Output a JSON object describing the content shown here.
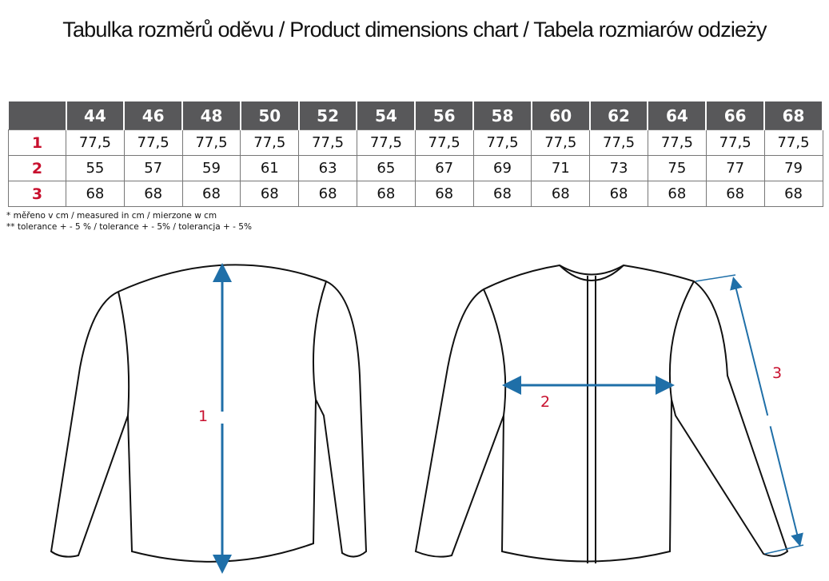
{
  "title": "Tabulka rozměrů oděvu / Product dimensions chart / Tabela rozmiarów odzieży",
  "table": {
    "sizes": [
      "44",
      "46",
      "48",
      "50",
      "52",
      "54",
      "56",
      "58",
      "60",
      "62",
      "64",
      "66",
      "68"
    ],
    "rows": [
      {
        "label": "1",
        "values": [
          "77,5",
          "77,5",
          "77,5",
          "77,5",
          "77,5",
          "77,5",
          "77,5",
          "77,5",
          "77,5",
          "77,5",
          "77,5",
          "77,5",
          "77,5"
        ]
      },
      {
        "label": "2",
        "values": [
          "55",
          "57",
          "59",
          "61",
          "63",
          "65",
          "67",
          "69",
          "71",
          "73",
          "75",
          "77",
          "79"
        ]
      },
      {
        "label": "3",
        "values": [
          "68",
          "68",
          "68",
          "68",
          "68",
          "68",
          "68",
          "68",
          "68",
          "68",
          "68",
          "68",
          "68"
        ]
      }
    ]
  },
  "notes": [
    "* měřeno v cm / measured in cm / mierzone w cm",
    "** tolerance + - 5 % / tolerance + - 5% / tolerancja + - 5%"
  ],
  "diagram": {
    "label_1": "1",
    "label_2": "2",
    "label_3": "3"
  },
  "colors": {
    "header": "#58585a",
    "accent_red": "#c8102e",
    "arrow_blue": "#1f6fa8"
  }
}
